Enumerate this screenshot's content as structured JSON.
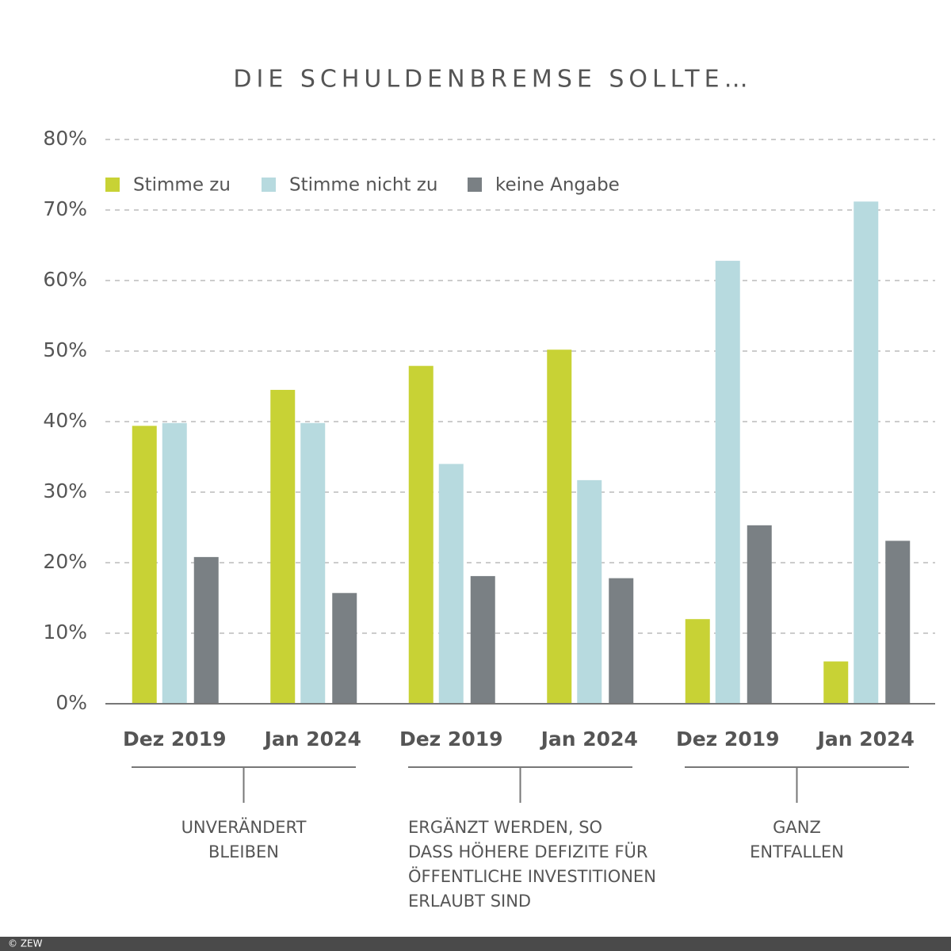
{
  "chart_data": {
    "type": "bar",
    "title": "DIE SCHULDENBREMSE SOLLTE…",
    "categories": [
      "Dez 2019",
      "Jan 2024",
      "Dez 2019",
      "Jan 2024",
      "Dez 2019",
      "Jan 2024"
    ],
    "groups": [
      {
        "lines": [
          "UNVERÄNDERT",
          "BLEIBEN"
        ]
      },
      {
        "lines": [
          "ERGÄNZT WERDEN, SO",
          "DASS HÖHERE DEFIZITE FÜR",
          "ÖFFENTLICHE INVESTITIONEN",
          "ERLAUBT SIND"
        ]
      },
      {
        "lines": [
          "GANZ",
          "ENTFALLEN"
        ]
      }
    ],
    "series": [
      {
        "name": "Stimme zu",
        "color": "#c8d235",
        "values": [
          39.4,
          44.5,
          47.9,
          50.2,
          12.0,
          6.0
        ]
      },
      {
        "name": "Stimme nicht zu",
        "color": "#b7dadf",
        "values": [
          39.8,
          39.8,
          34.0,
          31.7,
          62.8,
          71.2
        ]
      },
      {
        "name": "keine Angabe",
        "color": "#7a8084",
        "values": [
          20.8,
          15.7,
          18.1,
          17.8,
          25.3,
          23.1
        ]
      }
    ],
    "ylim": [
      0,
      80
    ],
    "yticks": [
      {
        "value": 0,
        "label": "0%"
      },
      {
        "value": 10,
        "label": "10%"
      },
      {
        "value": 20,
        "label": "20%"
      },
      {
        "value": 30,
        "label": "30%"
      },
      {
        "value": 40,
        "label": "40%"
      },
      {
        "value": 50,
        "label": "50%"
      },
      {
        "value": 60,
        "label": "60%"
      },
      {
        "value": 70,
        "label": "70%"
      },
      {
        "value": 80,
        "label": "80%"
      }
    ],
    "grid": true,
    "footer": "© ZEW"
  }
}
